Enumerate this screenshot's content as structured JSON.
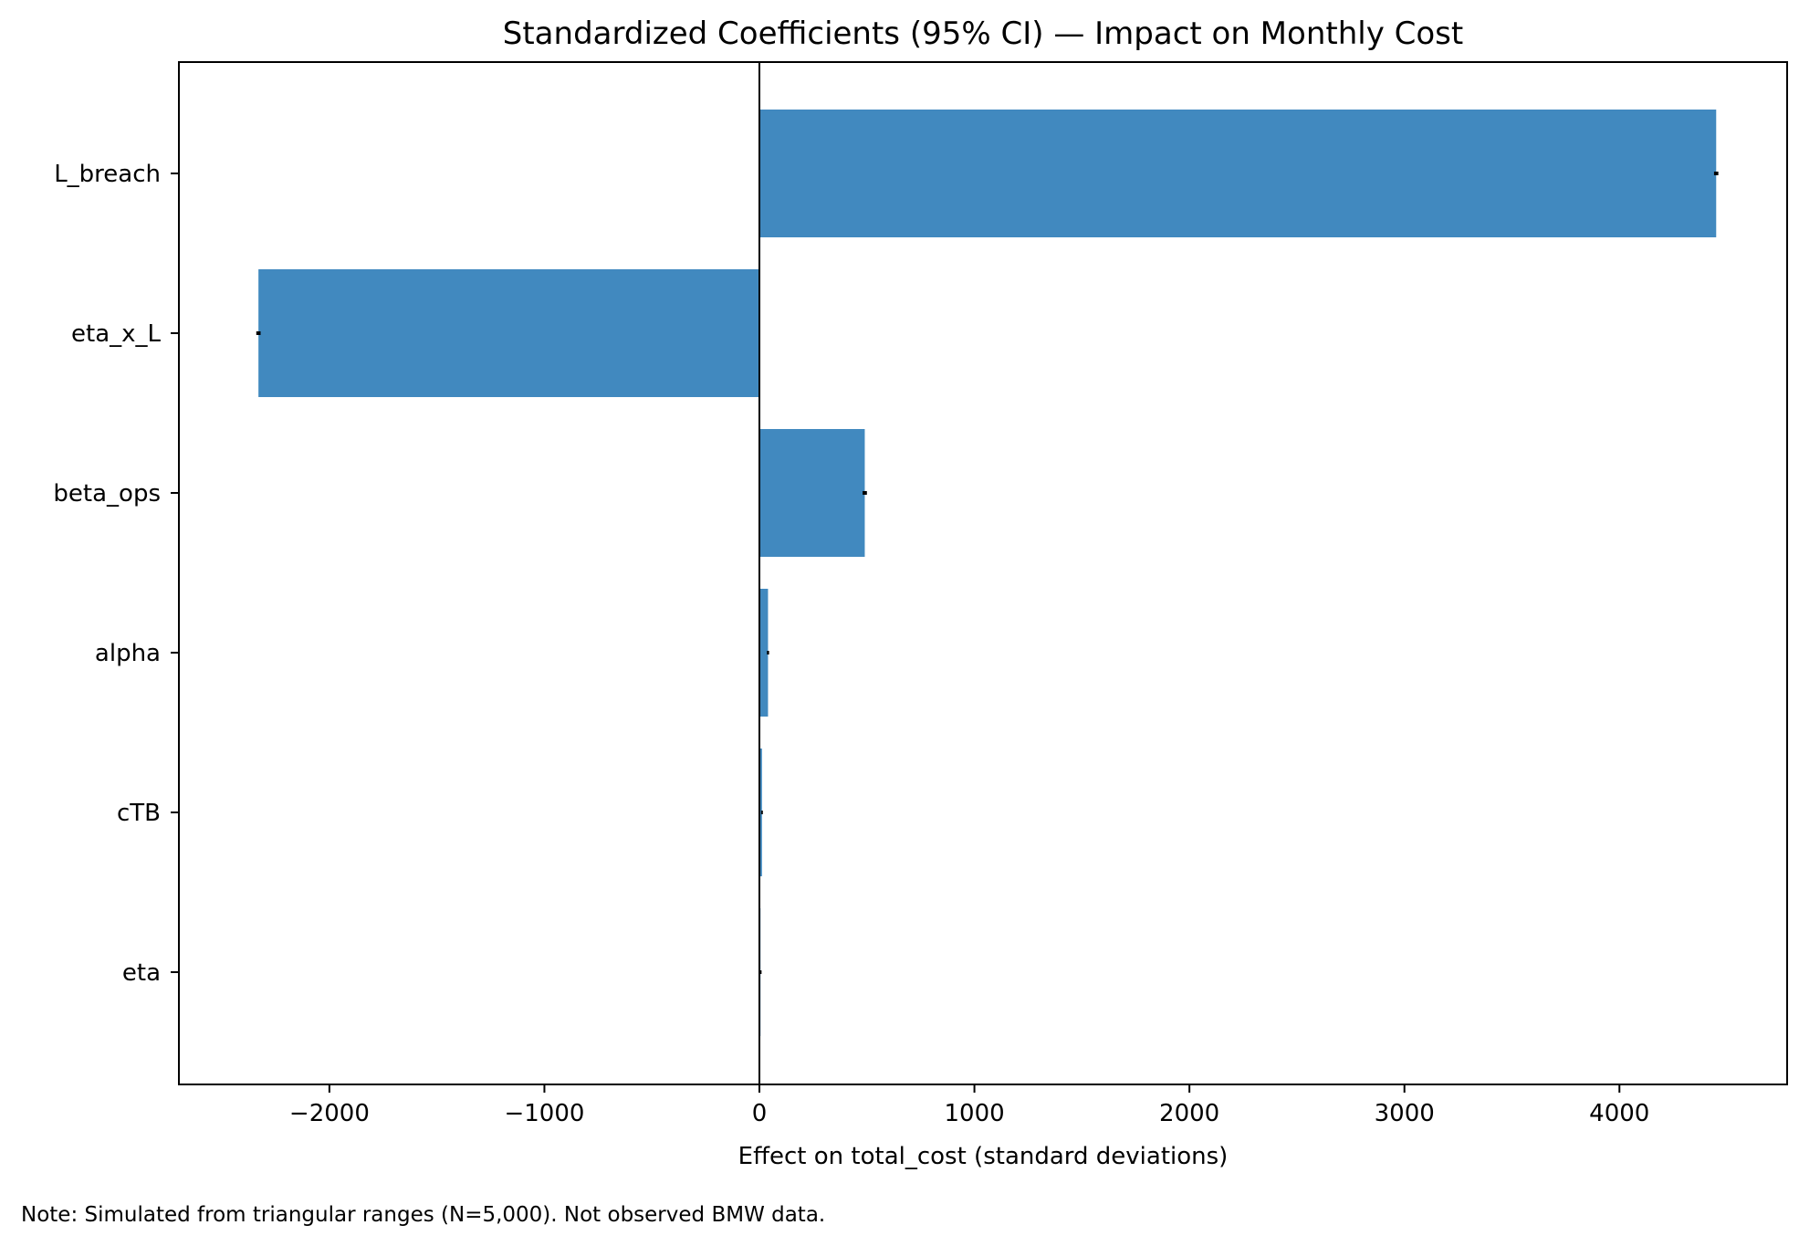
{
  "chart_data": {
    "type": "bar",
    "orientation": "horizontal",
    "title": "Standardized Coefficients (95% CI) — Impact on Monthly Cost",
    "xlabel": "Effect on total_cost (standard deviations)",
    "ylabel": "",
    "categories": [
      "L_breach",
      "eta_x_L",
      "beta_ops",
      "alpha",
      "cTB",
      "eta"
    ],
    "values": [
      4450,
      -2330,
      490,
      40,
      12,
      5
    ],
    "ci": [
      [
        4440,
        4460
      ],
      [
        -2340,
        -2320
      ],
      [
        480,
        500
      ],
      [
        35,
        45
      ],
      [
        8,
        16
      ],
      [
        0,
        10
      ]
    ],
    "xlim": [
      -2700,
      4780
    ],
    "xticks": [
      -2000,
      -1000,
      0,
      1000,
      2000,
      3000,
      4000
    ],
    "xtick_labels": [
      "−2000",
      "−1000",
      "0",
      "1000",
      "2000",
      "3000",
      "4000"
    ],
    "bar_color": "#4189bf",
    "errorbar_color": "#000000",
    "zero_line": true,
    "grid": false,
    "legend": "none"
  },
  "note": "Note: Simulated from triangular ranges (N=5,000). Not observed BMW data."
}
